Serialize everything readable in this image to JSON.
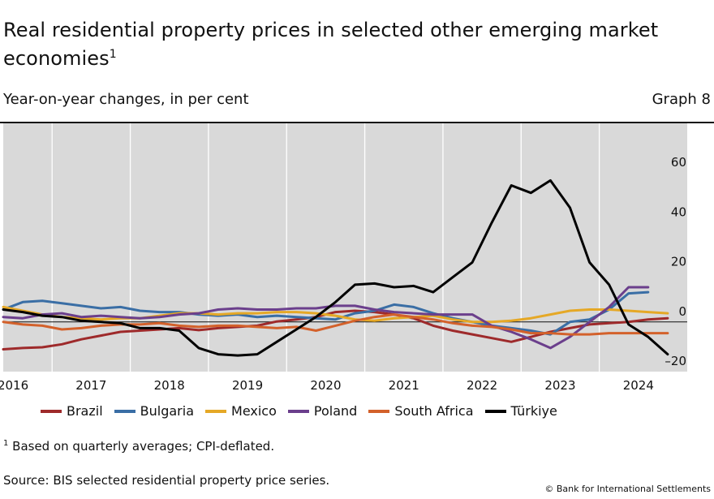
{
  "header": {
    "title": "Real residential property prices in selected other emerging market economies",
    "title_footnote_marker": "1",
    "subtitle": "Year-on-year changes, in per cent",
    "graph_number": "Graph 8"
  },
  "footer": {
    "footnote_marker": "1",
    "footnote_text": "Based on quarterly averages; CPI-deflated.",
    "source": "Source: BIS selected residential property price series.",
    "copyright": "© Bank for International Settlements"
  },
  "chart_data": {
    "type": "line",
    "x_tick_labels": [
      "2016",
      "2017",
      "2018",
      "2019",
      "2020",
      "2021",
      "2022",
      "2023",
      "2024"
    ],
    "y_tick_labels": [
      "60",
      "40",
      "20",
      "0",
      "–20"
    ],
    "y_ticks": [
      60,
      40,
      20,
      0,
      -20
    ],
    "ylim": [
      -20,
      80
    ],
    "xlim": [
      2015.875,
      2024.625
    ],
    "grid": "vertical year separators",
    "legend_position": "bottom",
    "series": [
      {
        "name": "Brazil",
        "color": "#9e2a2b",
        "points": [
          [
            2015.875,
            -11
          ],
          [
            2016.125,
            -10.5
          ],
          [
            2016.375,
            -10.2
          ],
          [
            2016.625,
            -9
          ],
          [
            2016.875,
            -7
          ],
          [
            2017.125,
            -5.5
          ],
          [
            2017.375,
            -4
          ],
          [
            2017.625,
            -3.5
          ],
          [
            2017.875,
            -3
          ],
          [
            2018.125,
            -2.5
          ],
          [
            2018.375,
            -3.3
          ],
          [
            2018.625,
            -2.5
          ],
          [
            2018.875,
            -2
          ],
          [
            2019.125,
            -1.5
          ],
          [
            2019.375,
            0.2
          ],
          [
            2019.625,
            1
          ],
          [
            2019.875,
            2
          ],
          [
            2020.125,
            4
          ],
          [
            2020.375,
            4.5
          ],
          [
            2020.625,
            4
          ],
          [
            2020.875,
            3
          ],
          [
            2021.125,
            1.5
          ],
          [
            2021.375,
            -1.5
          ],
          [
            2021.625,
            -3.5
          ],
          [
            2021.875,
            -5
          ],
          [
            2022.125,
            -6.5
          ],
          [
            2022.375,
            -8
          ],
          [
            2022.625,
            -6
          ],
          [
            2022.875,
            -4
          ],
          [
            2023.125,
            -2.5
          ],
          [
            2023.375,
            -1
          ],
          [
            2023.625,
            -0.5
          ],
          [
            2023.875,
            0
          ],
          [
            2024.125,
            1
          ],
          [
            2024.375,
            1.5
          ]
        ]
      },
      {
        "name": "Bulgaria",
        "color": "#3a6ea5",
        "points": [
          [
            2015.875,
            5
          ],
          [
            2016.125,
            8
          ],
          [
            2016.375,
            8.5
          ],
          [
            2016.625,
            7.5
          ],
          [
            2016.875,
            6.5
          ],
          [
            2017.125,
            5.5
          ],
          [
            2017.375,
            6
          ],
          [
            2017.625,
            4.5
          ],
          [
            2017.875,
            4
          ],
          [
            2018.125,
            4
          ],
          [
            2018.375,
            3
          ],
          [
            2018.625,
            2.5
          ],
          [
            2018.875,
            3
          ],
          [
            2019.125,
            2
          ],
          [
            2019.375,
            2.5
          ],
          [
            2019.625,
            2
          ],
          [
            2019.875,
            1.5
          ],
          [
            2020.125,
            1
          ],
          [
            2020.375,
            3.5
          ],
          [
            2020.625,
            4.5
          ],
          [
            2020.875,
            7
          ],
          [
            2021.125,
            6
          ],
          [
            2021.375,
            3.5
          ],
          [
            2021.625,
            1.5
          ],
          [
            2021.875,
            0
          ],
          [
            2022.125,
            -1.5
          ],
          [
            2022.375,
            -2.5
          ],
          [
            2022.625,
            -3.5
          ],
          [
            2022.875,
            -5
          ],
          [
            2023.125,
            0
          ],
          [
            2023.375,
            1
          ],
          [
            2023.625,
            5
          ],
          [
            2023.875,
            11.5
          ],
          [
            2024.125,
            12
          ]
        ]
      },
      {
        "name": "Mexico",
        "color": "#e5a826",
        "points": [
          [
            2015.875,
            6
          ],
          [
            2016.125,
            4.5
          ],
          [
            2016.375,
            3
          ],
          [
            2016.625,
            2
          ],
          [
            2016.875,
            1.5
          ],
          [
            2017.125,
            1
          ],
          [
            2017.375,
            1.5
          ],
          [
            2017.625,
            1.5
          ],
          [
            2017.875,
            2.5
          ],
          [
            2018.125,
            3.5
          ],
          [
            2018.375,
            3.5
          ],
          [
            2018.625,
            3
          ],
          [
            2018.875,
            3.5
          ],
          [
            2019.125,
            3.5
          ],
          [
            2019.375,
            4
          ],
          [
            2019.625,
            4
          ],
          [
            2019.875,
            3.5
          ],
          [
            2020.125,
            2.5
          ],
          [
            2020.375,
            1
          ],
          [
            2020.625,
            0.5
          ],
          [
            2020.875,
            1.5
          ],
          [
            2021.125,
            2
          ],
          [
            2021.375,
            2.5
          ],
          [
            2021.625,
            1
          ],
          [
            2021.875,
            0
          ],
          [
            2022.125,
            0
          ],
          [
            2022.375,
            0.5
          ],
          [
            2022.625,
            1.5
          ],
          [
            2022.875,
            3
          ],
          [
            2023.125,
            4.5
          ],
          [
            2023.375,
            5
          ],
          [
            2023.625,
            5
          ],
          [
            2023.875,
            4.5
          ],
          [
            2024.125,
            4
          ],
          [
            2024.375,
            3.5
          ]
        ]
      },
      {
        "name": "Poland",
        "color": "#6b3f8c",
        "points": [
          [
            2015.875,
            2
          ],
          [
            2016.125,
            1.5
          ],
          [
            2016.375,
            3
          ],
          [
            2016.625,
            3.5
          ],
          [
            2016.875,
            2
          ],
          [
            2017.125,
            2.5
          ],
          [
            2017.375,
            2
          ],
          [
            2017.625,
            1.5
          ],
          [
            2017.875,
            2
          ],
          [
            2018.125,
            3
          ],
          [
            2018.375,
            3.5
          ],
          [
            2018.625,
            5
          ],
          [
            2018.875,
            5.5
          ],
          [
            2019.125,
            5
          ],
          [
            2019.375,
            5
          ],
          [
            2019.625,
            5.5
          ],
          [
            2019.875,
            5.5
          ],
          [
            2020.125,
            6.5
          ],
          [
            2020.375,
            6.5
          ],
          [
            2020.625,
            5
          ],
          [
            2020.875,
            4
          ],
          [
            2021.125,
            3.5
          ],
          [
            2021.375,
            3
          ],
          [
            2021.625,
            3
          ],
          [
            2021.875,
            3
          ],
          [
            2022.125,
            -1.5
          ],
          [
            2022.375,
            -4
          ],
          [
            2022.625,
            -7
          ],
          [
            2022.875,
            -10.5
          ],
          [
            2023.125,
            -6
          ],
          [
            2023.375,
            0
          ],
          [
            2023.625,
            6
          ],
          [
            2023.875,
            14
          ],
          [
            2024.125,
            14
          ]
        ]
      },
      {
        "name": "South Africa",
        "color": "#d3612b",
        "points": [
          [
            2015.875,
            0
          ],
          [
            2016.125,
            -1
          ],
          [
            2016.375,
            -1.5
          ],
          [
            2016.625,
            -3
          ],
          [
            2016.875,
            -2.5
          ],
          [
            2017.125,
            -1.5
          ],
          [
            2017.375,
            -1
          ],
          [
            2017.625,
            -1
          ],
          [
            2017.875,
            -0.5
          ],
          [
            2018.125,
            -1.5
          ],
          [
            2018.375,
            -2
          ],
          [
            2018.625,
            -1.5
          ],
          [
            2018.875,
            -1.5
          ],
          [
            2019.125,
            -2
          ],
          [
            2019.375,
            -2.5
          ],
          [
            2019.625,
            -2
          ],
          [
            2019.875,
            -3.5
          ],
          [
            2020.125,
            -1.5
          ],
          [
            2020.375,
            0.5
          ],
          [
            2020.625,
            2
          ],
          [
            2020.875,
            3
          ],
          [
            2021.125,
            2
          ],
          [
            2021.375,
            1
          ],
          [
            2021.625,
            -0.5
          ],
          [
            2021.875,
            -1.5
          ],
          [
            2022.125,
            -2
          ],
          [
            2022.375,
            -3
          ],
          [
            2022.625,
            -4.5
          ],
          [
            2022.875,
            -4.5
          ],
          [
            2023.125,
            -5
          ],
          [
            2023.375,
            -5
          ],
          [
            2023.625,
            -4.5
          ],
          [
            2023.875,
            -4.5
          ],
          [
            2024.125,
            -4.5
          ],
          [
            2024.375,
            -4.5
          ]
        ]
      },
      {
        "name": "Türkiye",
        "color": "#000000",
        "points": [
          [
            2015.875,
            5
          ],
          [
            2016.125,
            4
          ],
          [
            2016.375,
            2.5
          ],
          [
            2016.625,
            2
          ],
          [
            2016.875,
            0.5
          ],
          [
            2017.125,
            0
          ],
          [
            2017.375,
            -0.5
          ],
          [
            2017.625,
            -2.5
          ],
          [
            2017.875,
            -2.5
          ],
          [
            2018.125,
            -3.5
          ],
          [
            2018.375,
            -10.5
          ],
          [
            2018.625,
            -13
          ],
          [
            2018.875,
            -13.5
          ],
          [
            2019.125,
            -13
          ],
          [
            2019.375,
            -8
          ],
          [
            2019.625,
            -3
          ],
          [
            2019.875,
            2
          ],
          [
            2020.125,
            8
          ],
          [
            2020.375,
            15
          ],
          [
            2020.625,
            15.5
          ],
          [
            2020.875,
            14
          ],
          [
            2021.125,
            14.5
          ],
          [
            2021.375,
            12
          ],
          [
            2021.625,
            18
          ],
          [
            2021.875,
            24
          ],
          [
            2022.125,
            40
          ],
          [
            2022.375,
            55
          ],
          [
            2022.625,
            52
          ],
          [
            2022.875,
            57
          ],
          [
            2023.125,
            46
          ],
          [
            2023.375,
            24
          ],
          [
            2023.625,
            15
          ],
          [
            2023.875,
            -1
          ],
          [
            2024.125,
            -6
          ],
          [
            2024.375,
            -13
          ]
        ]
      }
    ]
  }
}
